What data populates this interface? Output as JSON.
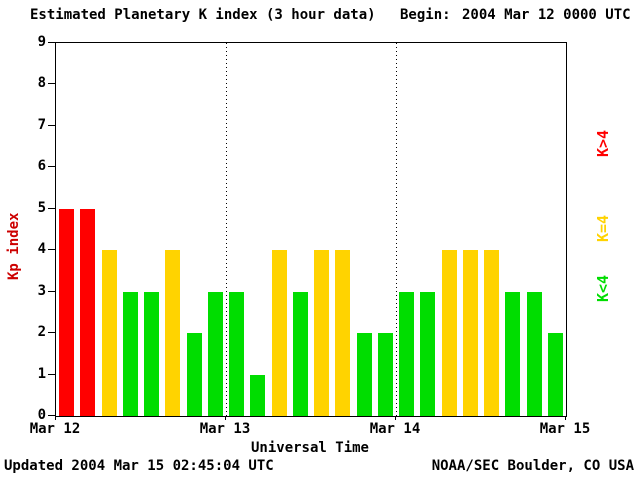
{
  "header": {
    "title": "Estimated Planetary K index (3 hour data)",
    "begin_label": "Begin:",
    "begin_value": "2004 Mar 12 0000 UTC"
  },
  "footer": {
    "updated": "Updated 2004 Mar 15 02:45:04 UTC",
    "source": "NOAA/SEC Boulder, CO USA"
  },
  "legend": {
    "items": [
      {
        "label": "K>4",
        "color": "#ff0000"
      },
      {
        "label": "K=4",
        "color": "#ffd300"
      },
      {
        "label": "K<4",
        "color": "#00dd00"
      }
    ]
  },
  "chart_data": {
    "type": "bar",
    "title": "Estimated Planetary K index (3 hour data)",
    "begin": "2004 Mar 12 0000 UTC",
    "ylabel": "Kp index",
    "ylabel_color": "#cc0000",
    "xlabel": "Universal Time",
    "ylim": [
      0,
      9
    ],
    "y_ticks": [
      0,
      1,
      2,
      3,
      4,
      5,
      6,
      7,
      8,
      9
    ],
    "x_tick_labels": [
      "Mar 12",
      "Mar 13",
      "Mar 14",
      "Mar 15"
    ],
    "bars_per_day": 8,
    "interval_hours": 3,
    "values": [
      5,
      5,
      4,
      3,
      3,
      4,
      2,
      3,
      3,
      1,
      4,
      3,
      4,
      4,
      2,
      2,
      3,
      3,
      4,
      4,
      4,
      3,
      3,
      2
    ],
    "colors": {
      "above4": "#ff0000",
      "equal4": "#ffd300",
      "below4": "#00dd00"
    },
    "color_rule": "red if Kp greater than 4, yellow if Kp equal 4, green if Kp less than 4",
    "grid": "vertical dotted lines at day boundaries",
    "legend_position": "right"
  }
}
